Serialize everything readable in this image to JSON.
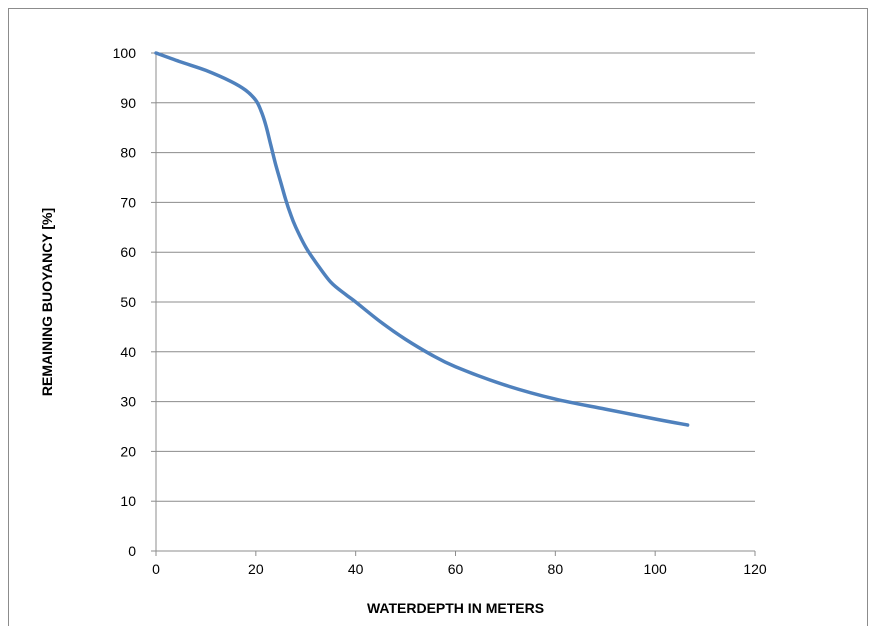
{
  "chart_data": {
    "type": "line",
    "title": "",
    "xlabel": "WATERDEPTH IN METERS",
    "ylabel": "REMAINING BUOYANCY [%]",
    "xlim": [
      0,
      120
    ],
    "ylim": [
      0,
      100
    ],
    "x_ticks": [
      0,
      20,
      40,
      60,
      80,
      100,
      120
    ],
    "y_ticks": [
      0,
      10,
      20,
      30,
      40,
      50,
      60,
      70,
      80,
      90,
      100
    ],
    "grid": "horizontal",
    "legend": "none",
    "series": [
      {
        "color": "#4f81bd",
        "x": [
          0,
          5,
          10,
          15,
          18,
          20,
          21,
          22,
          23,
          24,
          25,
          26,
          27,
          28,
          30,
          32,
          35,
          38,
          40,
          45,
          50,
          55,
          60,
          70,
          80,
          90,
          100,
          106.5
        ],
        "y": [
          100,
          98.2,
          96.5,
          94.3,
          92.5,
          90.5,
          88.5,
          85.5,
          81.5,
          77.5,
          74,
          70.5,
          67.5,
          65,
          61,
          58,
          54,
          51.5,
          50,
          46,
          42.5,
          39.5,
          37,
          33.3,
          30.5,
          28.5,
          26.5,
          25.3
        ]
      }
    ]
  }
}
